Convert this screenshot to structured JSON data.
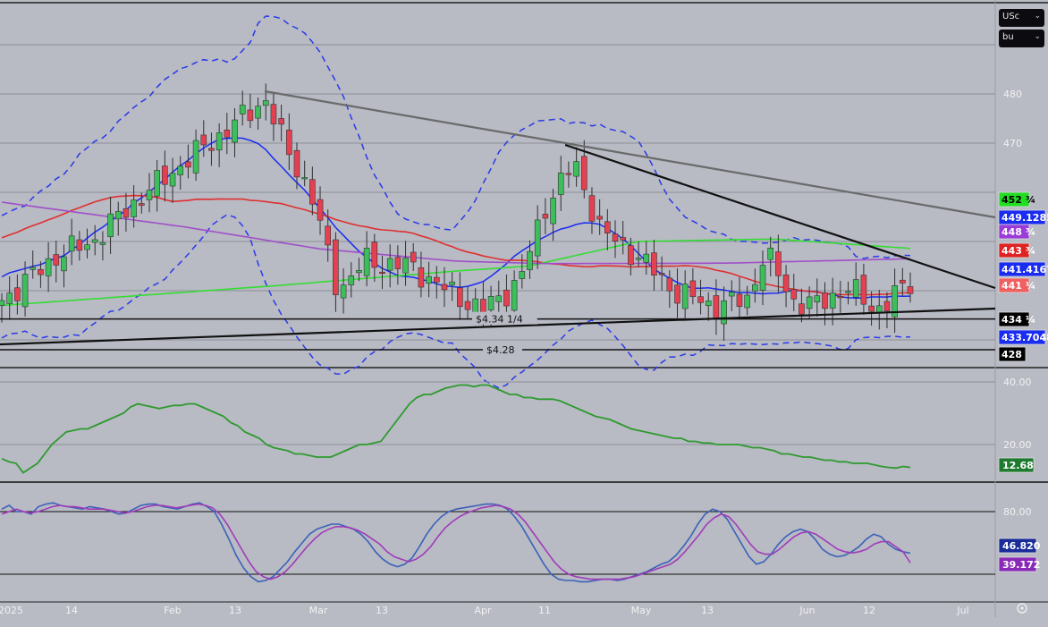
{
  "controls": {
    "currency": "USc",
    "unit": "bu",
    "settings_icon": "settings-icon",
    "dropdown_icon": "chevron-down-icon"
  },
  "chart_data": [
    {
      "type": "candlestick",
      "title": "",
      "x_ticks": [
        "2025",
        "14",
        "Feb",
        "13",
        "Mar",
        "13",
        "Apr",
        "11",
        "May",
        "13",
        "Jun",
        "12",
        "Jul"
      ],
      "y_ticks": [
        480,
        470,
        460,
        450,
        440,
        430
      ],
      "y_tick_labels": [
        "480",
        "470",
        "",
        "",
        "",
        ""
      ],
      "ylim": [
        422,
        491
      ],
      "grid": true,
      "price_tags": [
        {
          "label": "452 ¾",
          "value": 452.75,
          "color": "#22dd22",
          "text_color": "#000000"
        },
        {
          "label": "449.1285",
          "value": 449.1285,
          "color": "#1a2cf0",
          "text_color": "#ffffff"
        },
        {
          "label": "448 ¾",
          "value": 448.75,
          "color": "#9a3cd8",
          "text_color": "#ffffff"
        },
        {
          "label": "443 ¾",
          "value": 443.75,
          "color": "#e02222",
          "text_color": "#ffffff"
        },
        {
          "label": "441.4167",
          "value": 441.4167,
          "color": "#1a2cf0",
          "text_color": "#ffffff"
        },
        {
          "label": "441 ¼",
          "value": 441.25,
          "color": "#f06060",
          "text_color": "#ffffff"
        },
        {
          "label": "434 ¼",
          "value": 434.25,
          "color": "#000000",
          "text_color": "#ffffff"
        },
        {
          "label": "433.7048",
          "value": 433.7048,
          "color": "#1a2cf0",
          "text_color": "#ffffff"
        },
        {
          "label": "428",
          "value": 428,
          "color": "#000000",
          "text_color": "#ffffff"
        }
      ],
      "horizontal_lines": [
        {
          "label": "$4.34 1/4",
          "value": 434.25
        },
        {
          "label": "$4.28",
          "value": 428
        }
      ]
    },
    {
      "type": "line",
      "y_tick_labels": [
        "40.00",
        "20.00"
      ],
      "last_value": "12.68",
      "series": [
        {
          "color": "#2e9a2e",
          "values": [
            15.5,
            14.5,
            14,
            11,
            12.5,
            14,
            17,
            20,
            22,
            24,
            24.5,
            25,
            25,
            26,
            27,
            28,
            29,
            30,
            32,
            33,
            32.5,
            32,
            31.5,
            32,
            32.5,
            32.5,
            33,
            33,
            32,
            31,
            30,
            29,
            27,
            26,
            24,
            23,
            22,
            20,
            19,
            18.5,
            18,
            17,
            17,
            16.5,
            16,
            16,
            16,
            17,
            18,
            19,
            20,
            20,
            20.5,
            21,
            24,
            27,
            30,
            33,
            35,
            36,
            36,
            37,
            38,
            38.5,
            39,
            39,
            38.5,
            39,
            39,
            38,
            37,
            36,
            36,
            35,
            35,
            34.5,
            34.5,
            34.5,
            34,
            33,
            32,
            31,
            30,
            29,
            28.5,
            28,
            27,
            26,
            25,
            24.5,
            24,
            23.5,
            23,
            22.5,
            22,
            22,
            21,
            21,
            20.5,
            20.5,
            20,
            20,
            20,
            20,
            19.5,
            19,
            19,
            18.5,
            18,
            17,
            17,
            16.5,
            16,
            16,
            15.5,
            15,
            15,
            14.5,
            14.5,
            14,
            14,
            14,
            13.5,
            13,
            12.68,
            12.5,
            13,
            12.68
          ]
        }
      ]
    },
    {
      "type": "line",
      "y_tick_labels": [
        "80.00"
      ],
      "series": [
        {
          "color": "#3b62b8",
          "last_label": "46.820",
          "values": [
            82,
            85,
            80,
            80,
            78,
            84,
            86,
            87,
            85,
            84,
            83,
            82,
            84,
            83,
            82,
            80,
            78,
            79,
            82,
            85,
            86,
            86,
            84,
            83,
            82,
            84,
            86,
            87,
            84,
            80,
            70,
            58,
            45,
            35,
            28,
            24,
            25,
            28,
            34,
            40,
            48,
            55,
            62,
            66,
            68,
            70,
            70,
            68,
            66,
            62,
            56,
            48,
            42,
            38,
            36,
            38,
            43,
            52,
            62,
            70,
            76,
            80,
            82,
            83,
            84,
            85,
            86,
            86,
            85,
            82,
            76,
            68,
            58,
            48,
            38,
            30,
            26,
            25,
            25,
            24,
            24,
            25,
            26,
            26,
            25,
            26,
            28,
            30,
            32,
            35,
            38,
            40,
            45,
            52,
            60,
            70,
            78,
            82,
            80,
            74,
            64,
            54,
            44,
            38,
            40,
            46,
            54,
            60,
            64,
            66,
            64,
            58,
            50,
            46,
            44,
            45,
            48,
            52,
            58,
            62,
            60,
            54,
            50,
            48,
            46.82
          ]
        },
        {
          "color": "#a03cb8",
          "last_label": "39.172",
          "values": [
            78,
            80,
            82,
            80,
            79,
            80,
            82,
            84,
            85,
            84,
            84,
            83,
            82,
            82,
            82,
            81,
            80,
            79,
            80,
            82,
            84,
            85,
            85,
            84,
            83,
            84,
            85,
            86,
            85,
            83,
            78,
            70,
            60,
            50,
            40,
            32,
            28,
            26,
            28,
            32,
            38,
            45,
            52,
            58,
            63,
            66,
            68,
            68,
            67,
            65,
            62,
            58,
            54,
            48,
            44,
            42,
            40,
            42,
            46,
            52,
            60,
            67,
            72,
            76,
            79,
            81,
            83,
            84,
            85,
            84,
            82,
            78,
            72,
            64,
            56,
            48,
            40,
            34,
            30,
            28,
            27,
            26,
            26,
            26,
            26,
            26,
            27,
            28,
            30,
            32,
            34,
            36,
            38,
            42,
            48,
            55,
            62,
            70,
            75,
            78,
            76,
            70,
            62,
            54,
            48,
            46,
            46,
            50,
            55,
            60,
            63,
            64,
            62,
            58,
            54,
            50,
            48,
            47,
            48,
            50,
            54,
            56,
            56,
            52,
            48,
            39.172
          ]
        }
      ]
    }
  ]
}
